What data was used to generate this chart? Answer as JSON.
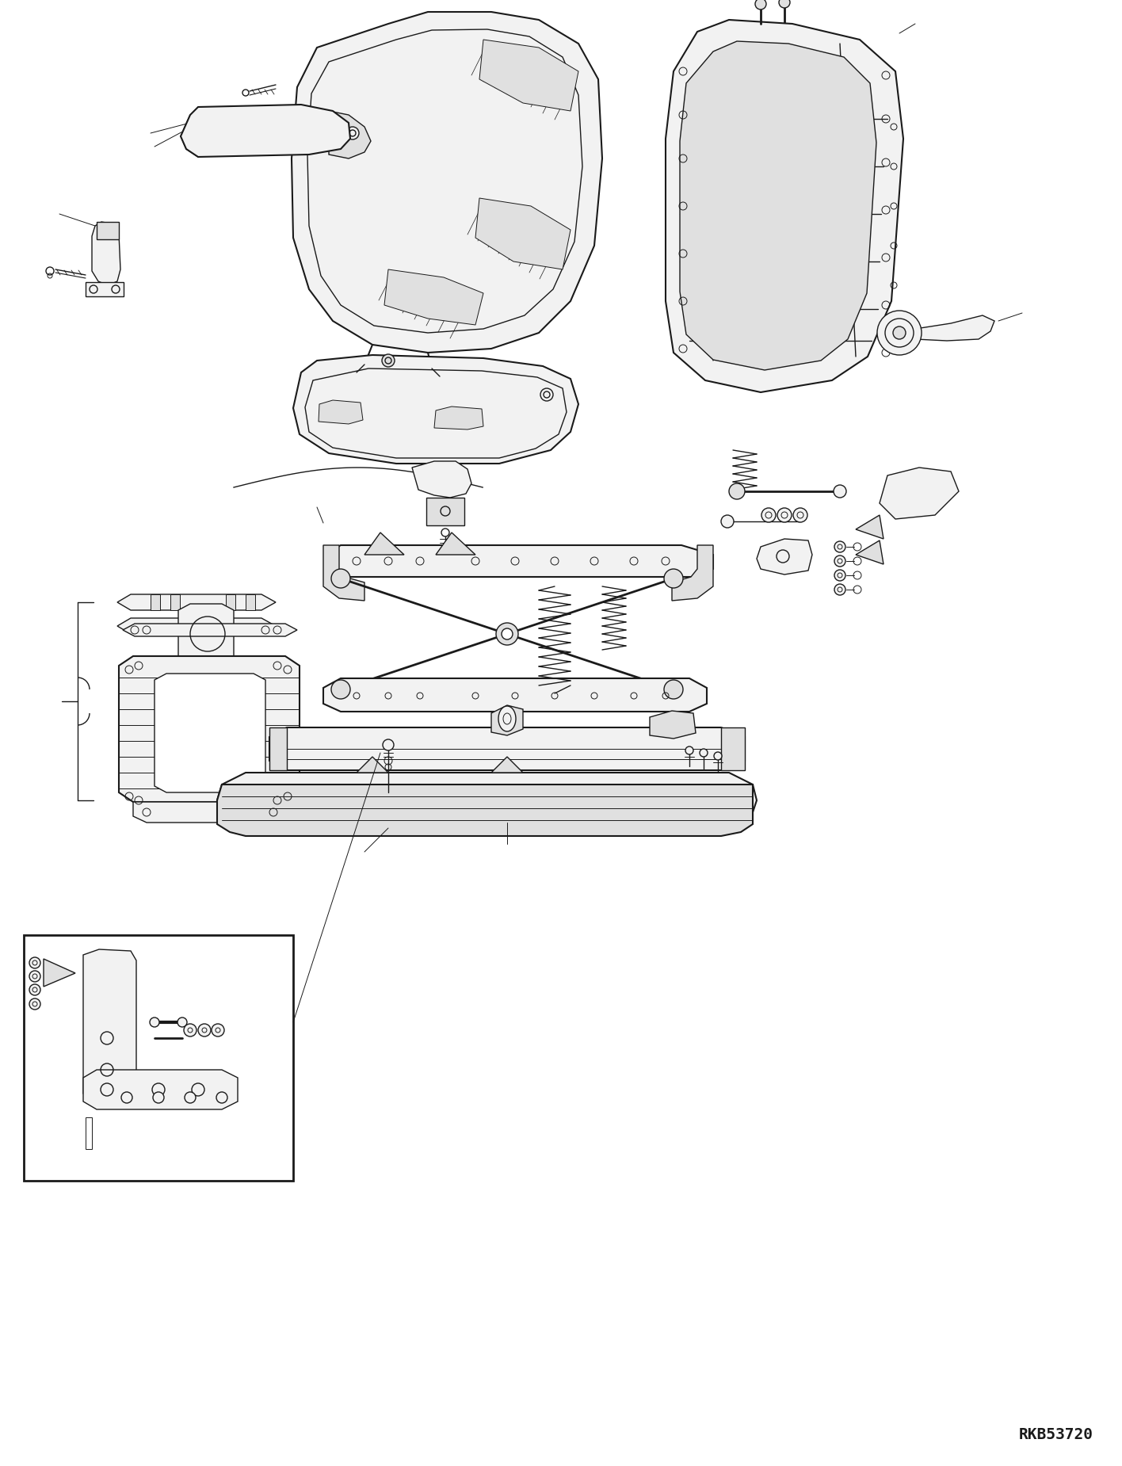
{
  "background_color": "#ffffff",
  "line_color": "#1a1a1a",
  "figure_width": 14.16,
  "figure_height": 18.5,
  "dpi": 100,
  "watermark_text": "RKB53720",
  "watermark_fontsize": 14
}
